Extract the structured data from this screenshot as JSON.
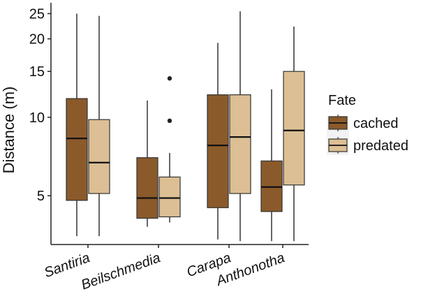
{
  "chart_data": {
    "type": "boxplot",
    "ylabel": "Distance (m)",
    "xlabel": "",
    "yscale": "log",
    "ylim": [
      3.25,
      27.5
    ],
    "yticks": [
      5,
      10,
      15,
      20,
      25
    ],
    "ytick_labels": [
      "5",
      "10",
      "15",
      "20",
      "25"
    ],
    "categories": [
      "Santiria",
      "Beilschmedia",
      "Carapa",
      "Anthonotha"
    ],
    "legend": {
      "title": "Fate",
      "position": "right"
    },
    "grid": false,
    "series": [
      {
        "name": "cached",
        "color": "#8b5a2b",
        "boxes": [
          {
            "whisker_low": 3.5,
            "q1": 4.8,
            "median": 8.3,
            "q3": 11.8,
            "whisker_high": 25.0,
            "outliers": []
          },
          {
            "whisker_low": 3.8,
            "q1": 4.1,
            "median": 4.9,
            "q3": 7.0,
            "whisker_high": 11.6,
            "outliers": []
          },
          {
            "whisker_low": 3.4,
            "q1": 4.5,
            "median": 7.8,
            "q3": 12.2,
            "whisker_high": 19.3,
            "outliers": []
          },
          {
            "whisker_low": 3.35,
            "q1": 4.35,
            "median": 5.4,
            "q3": 6.8,
            "whisker_high": 12.8,
            "outliers": []
          }
        ]
      },
      {
        "name": "predated",
        "color": "#dcbf94",
        "boxes": [
          {
            "whisker_low": 3.5,
            "q1": 5.1,
            "median": 6.7,
            "q3": 9.8,
            "whisker_high": 24.5,
            "outliers": []
          },
          {
            "whisker_low": 3.95,
            "q1": 4.15,
            "median": 4.9,
            "q3": 5.9,
            "whisker_high": 7.3,
            "outliers": [
              9.7,
              14.1
            ]
          },
          {
            "whisker_low": 3.35,
            "q1": 5.1,
            "median": 8.4,
            "q3": 12.2,
            "whisker_high": 25.5,
            "outliers": []
          },
          {
            "whisker_low": 3.35,
            "q1": 5.5,
            "median": 8.9,
            "q3": 15.0,
            "whisker_high": 22.3,
            "outliers": []
          }
        ]
      }
    ]
  }
}
